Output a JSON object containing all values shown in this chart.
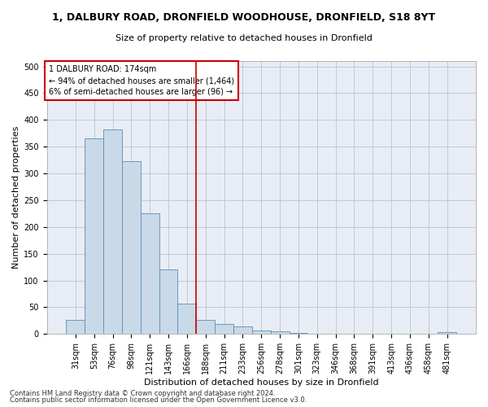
{
  "title": "1, DALBURY ROAD, DRONFIELD WOODHOUSE, DRONFIELD, S18 8YT",
  "subtitle": "Size of property relative to detached houses in Dronfield",
  "xlabel": "Distribution of detached houses by size in Dronfield",
  "ylabel": "Number of detached properties",
  "categories": [
    "31sqm",
    "53sqm",
    "76sqm",
    "98sqm",
    "121sqm",
    "143sqm",
    "166sqm",
    "188sqm",
    "211sqm",
    "233sqm",
    "256sqm",
    "278sqm",
    "301sqm",
    "323sqm",
    "346sqm",
    "368sqm",
    "391sqm",
    "413sqm",
    "436sqm",
    "458sqm",
    "481sqm"
  ],
  "values": [
    27,
    365,
    382,
    323,
    225,
    120,
    57,
    26,
    19,
    14,
    6,
    5,
    2,
    1,
    1,
    0,
    0,
    0,
    1,
    0,
    4
  ],
  "bar_color": "#c9d9e8",
  "bar_edge_color": "#5b8db8",
  "grid_color": "#c0c8d8",
  "bg_color": "#e8edf5",
  "vline_x": 6.5,
  "property_label": "1 DALBURY ROAD: 174sqm",
  "annotation_line1": "← 94% of detached houses are smaller (1,464)",
  "annotation_line2": "6% of semi-detached houses are larger (96) →",
  "annotation_box_color": "#ffffff",
  "annotation_box_edge_color": "#cc0000",
  "vline_color": "#cc0000",
  "footer_line1": "Contains HM Land Registry data © Crown copyright and database right 2024.",
  "footer_line2": "Contains public sector information licensed under the Open Government Licence v3.0.",
  "ylim": [
    0,
    510
  ],
  "yticks": [
    0,
    50,
    100,
    150,
    200,
    250,
    300,
    350,
    400,
    450,
    500
  ],
  "title_fontsize": 9,
  "subtitle_fontsize": 8,
  "xlabel_fontsize": 8,
  "ylabel_fontsize": 8,
  "tick_fontsize": 7,
  "annot_fontsize": 7,
  "footer_fontsize": 6
}
